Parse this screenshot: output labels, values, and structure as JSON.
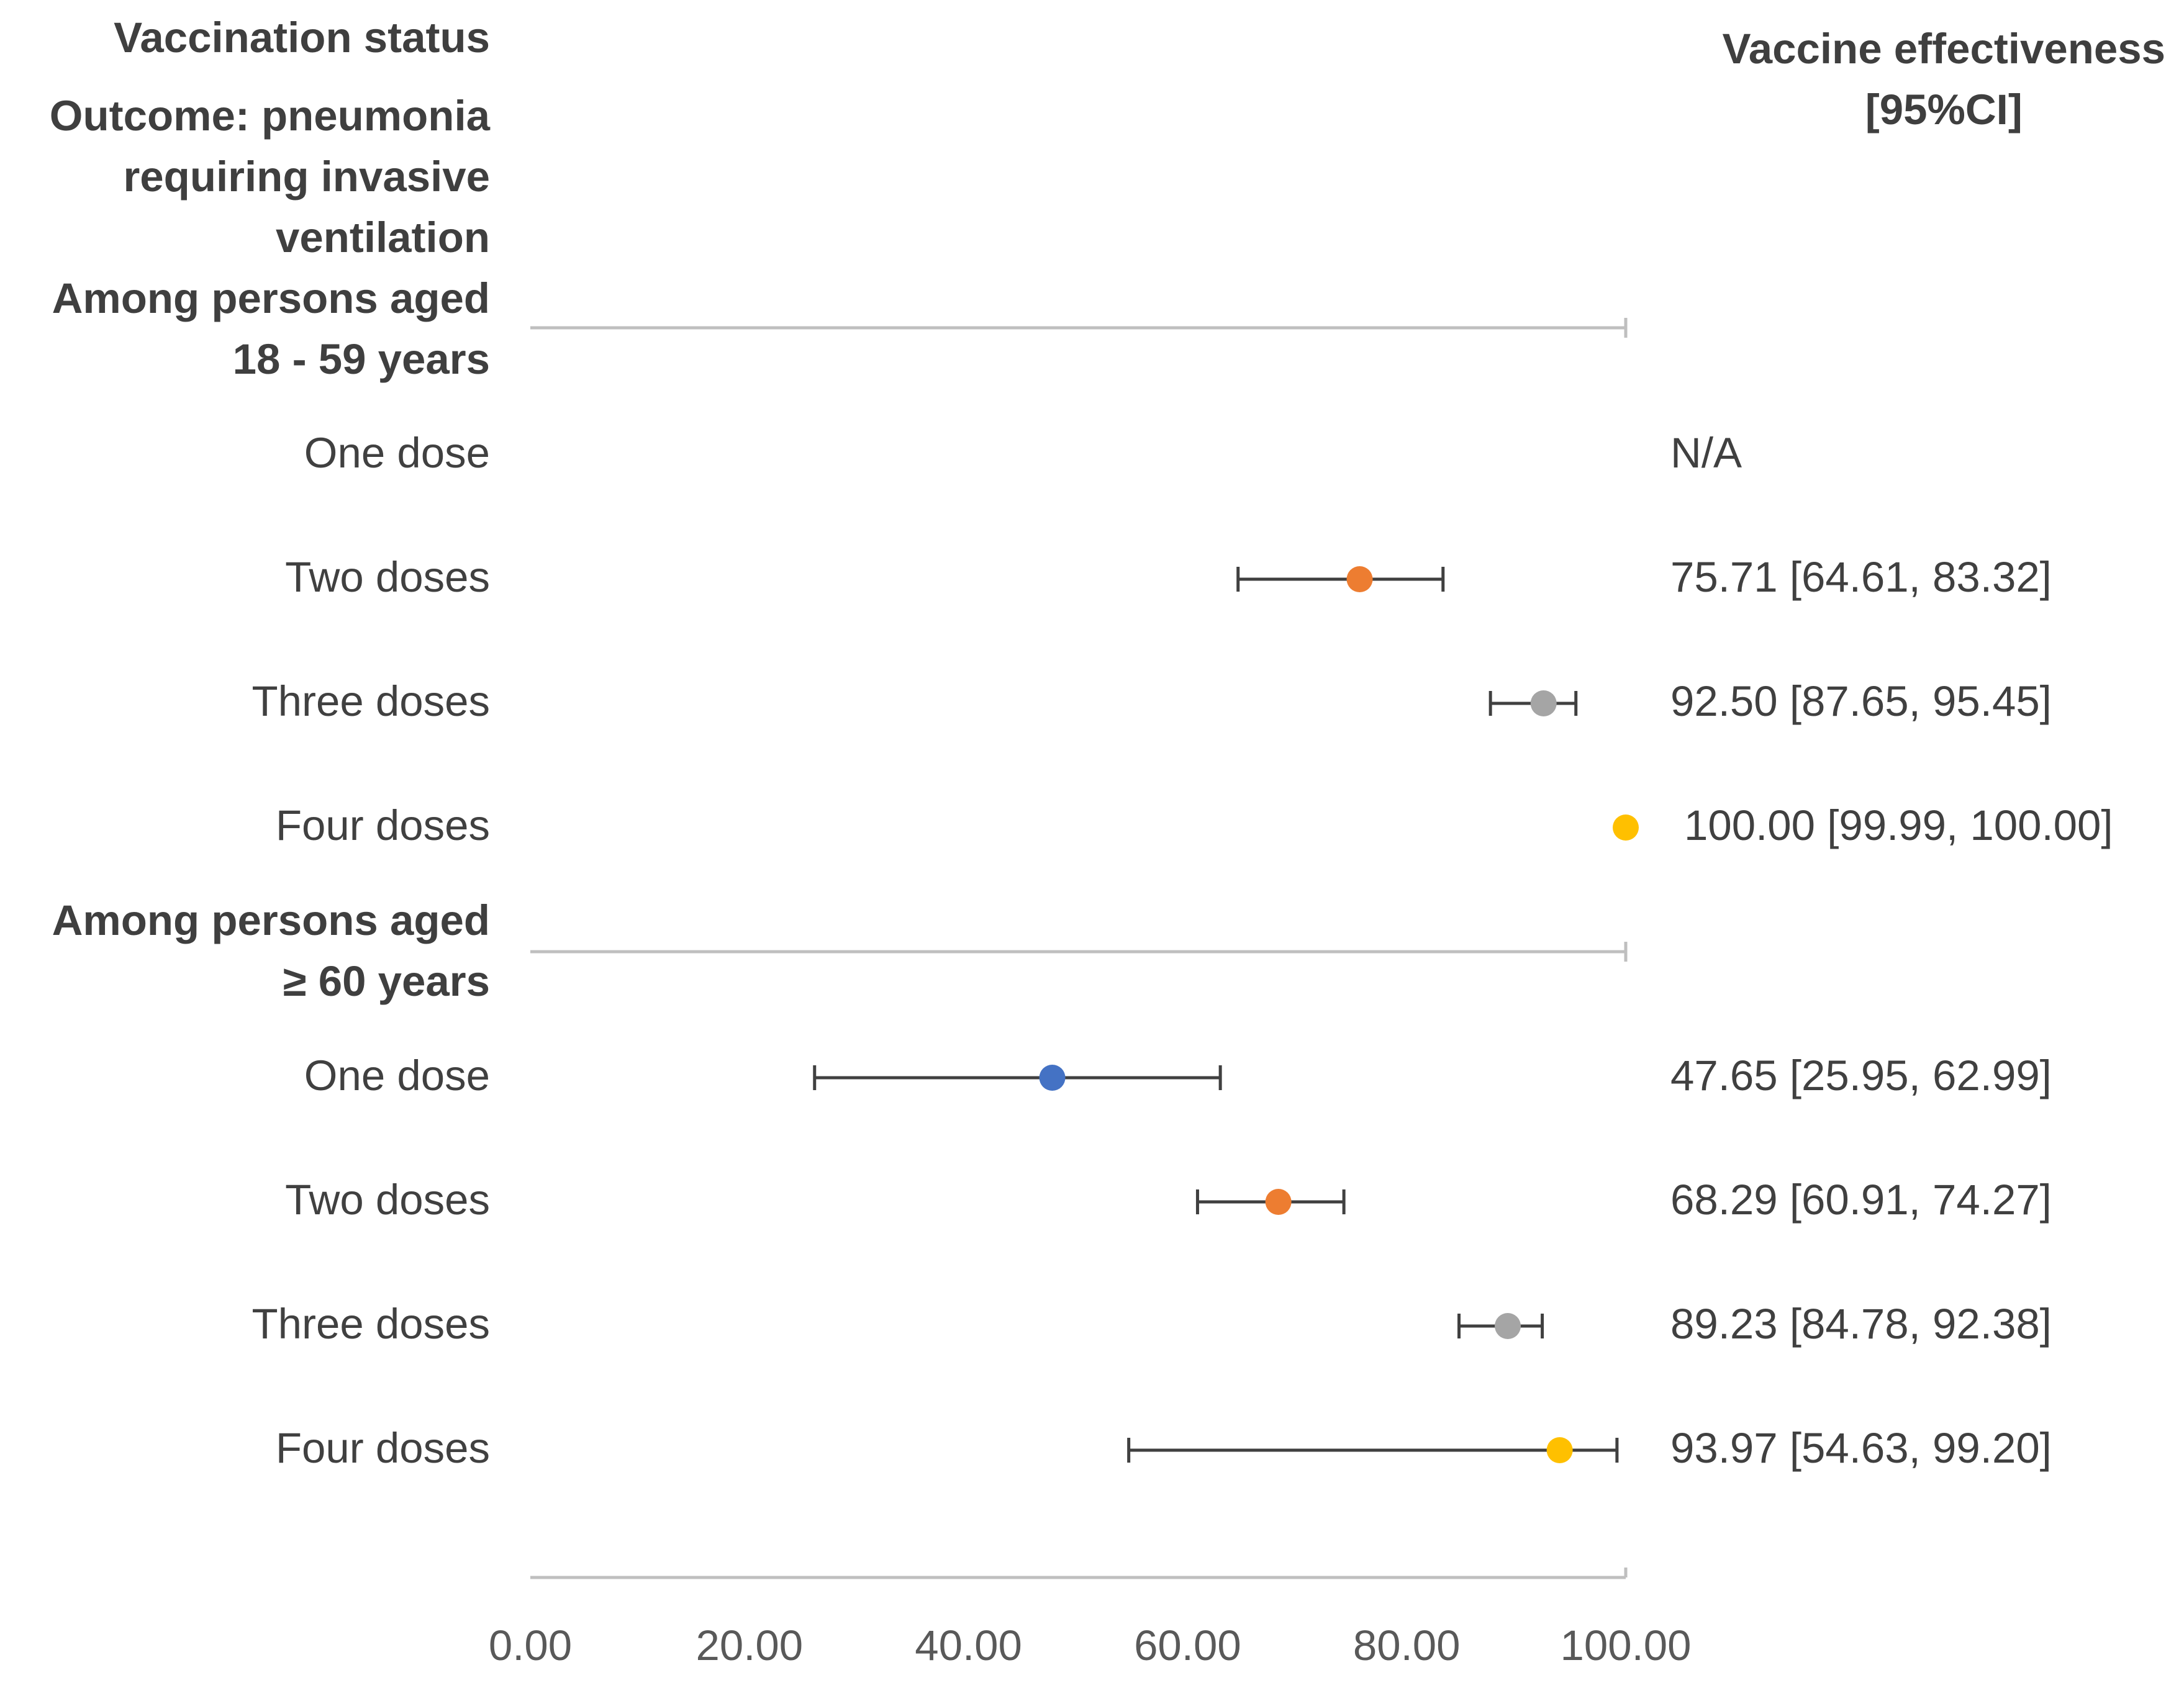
{
  "chart_data": {
    "type": "forest",
    "left_header": {
      "title": "Vaccination status",
      "outcome_lines": [
        "Outcome: pneumonia",
        "requiring invasive",
        "ventilation"
      ]
    },
    "right_header": {
      "lines": [
        "Vaccine effectiveness",
        "[95%CI]"
      ]
    },
    "groups": [
      {
        "label_lines": [
          "Among persons aged",
          "18 - 59 years"
        ],
        "rows": [
          {
            "label": "One dose",
            "estimate": null,
            "lower": null,
            "upper": null,
            "text": "N/A",
            "color": "#4472c4"
          },
          {
            "label": "Two doses",
            "estimate": 75.71,
            "lower": 64.61,
            "upper": 83.32,
            "text": "75.71 [64.61, 83.32]",
            "color": "#ed7d31"
          },
          {
            "label": "Three doses",
            "estimate": 92.5,
            "lower": 87.65,
            "upper": 95.45,
            "text": "92.50 [87.65, 95.45]",
            "color": "#a5a5a5"
          },
          {
            "label": "Four doses",
            "estimate": 100.0,
            "lower": 99.99,
            "upper": 100.0,
            "text": "100.00 [99.99, 100.00]",
            "color": "#ffc000"
          }
        ]
      },
      {
        "label_lines": [
          "Among persons aged",
          "≥ 60 years"
        ],
        "rows": [
          {
            "label": "One dose",
            "estimate": 47.65,
            "lower": 25.95,
            "upper": 62.99,
            "text": "47.65 [25.95, 62.99]",
            "color": "#4472c4"
          },
          {
            "label": "Two doses",
            "estimate": 68.29,
            "lower": 60.91,
            "upper": 74.27,
            "text": "68.29 [60.91, 74.27]",
            "color": "#ed7d31"
          },
          {
            "label": "Three doses",
            "estimate": 89.23,
            "lower": 84.78,
            "upper": 92.38,
            "text": "89.23 [84.78, 92.38]",
            "color": "#a5a5a5"
          },
          {
            "label": "Four doses",
            "estimate": 93.97,
            "lower": 54.63,
            "upper": 99.2,
            "text": "93.97 [54.63, 99.20]",
            "color": "#ffc000"
          }
        ]
      }
    ],
    "x_axis": {
      "min": 0,
      "max": 100,
      "ticks": [
        "0.00",
        "20.00",
        "40.00",
        "60.00",
        "80.00",
        "100.00"
      ],
      "tick_values": [
        0,
        20,
        40,
        60,
        80,
        100
      ]
    }
  }
}
